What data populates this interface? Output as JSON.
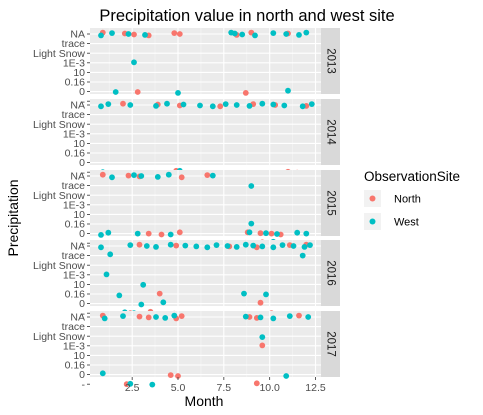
{
  "chart_data": {
    "type": "scatter",
    "title": "Precipitation value in north and west site",
    "xlabel": "Month",
    "ylabel": "Precipitation",
    "xlim": [
      0.2,
      12.8
    ],
    "x_ticks": [
      2.5,
      5.0,
      7.5,
      10.0,
      12.5
    ],
    "x_tick_labels": [
      "2.5",
      "5.0",
      "7.5",
      "10.0",
      "12.5"
    ],
    "y_categories": [
      "NA",
      "trace",
      "Light Snow",
      "1E-3",
      "10",
      "0.16",
      "0",
      "-"
    ],
    "grid": true,
    "legend": {
      "title": "ObservationSite",
      "placement": "right",
      "entries": [
        {
          "name": "North",
          "color": "#F8766D"
        },
        {
          "name": "West",
          "color": "#00BFC4"
        }
      ]
    },
    "facets": [
      {
        "label": "2013",
        "series": [
          {
            "name": "North",
            "points": [
              [
                0.9,
                "NA"
              ],
              [
                2.1,
                "NA"
              ],
              [
                2.6,
                "NA"
              ],
              [
                3.4,
                "NA"
              ],
              [
                4.8,
                "NA"
              ],
              [
                5.1,
                "NA"
              ],
              [
                8.2,
                "NA"
              ],
              [
                9.0,
                "NA"
              ],
              [
                11.0,
                "NA"
              ],
              [
                2.8,
                "0"
              ],
              [
                8.7,
                "0"
              ]
            ]
          },
          {
            "name": "West",
            "points": [
              [
                0.8,
                "NA"
              ],
              [
                1.4,
                "NA"
              ],
              [
                2.3,
                "NA"
              ],
              [
                3.2,
                "NA"
              ],
              [
                7.9,
                "NA"
              ],
              [
                8.1,
                "NA"
              ],
              [
                8.5,
                "NA"
              ],
              [
                9.2,
                "NA"
              ],
              [
                10.2,
                "NA"
              ],
              [
                10.9,
                "NA"
              ],
              [
                11.6,
                "NA"
              ],
              [
                12.0,
                "NA"
              ],
              [
                2.6,
                "1E-3"
              ],
              [
                1.6,
                "0"
              ],
              [
                5.0,
                "0"
              ],
              [
                11.0,
                "0"
              ]
            ]
          }
        ]
      },
      {
        "label": "2014",
        "series": [
          {
            "name": "North",
            "points": [
              [
                2.0,
                "NA"
              ],
              [
                3.9,
                "NA"
              ],
              [
                5.1,
                "NA"
              ],
              [
                7.3,
                "NA"
              ],
              [
                9.1,
                "NA"
              ],
              [
                10.3,
                "NA"
              ],
              [
                12.0,
                "NA"
              ],
              [
                4.9,
                "-"
              ],
              [
                11.0,
                "-"
              ],
              [
                11.5,
                "-"
              ]
            ]
          },
          {
            "name": "West",
            "points": [
              [
                0.8,
                "NA"
              ],
              [
                1.2,
                "NA"
              ],
              [
                2.4,
                "NA"
              ],
              [
                3.8,
                "NA"
              ],
              [
                4.4,
                "NA"
              ],
              [
                5.3,
                "NA"
              ],
              [
                6.2,
                "NA"
              ],
              [
                6.9,
                "NA"
              ],
              [
                7.6,
                "NA"
              ],
              [
                8.2,
                "NA"
              ],
              [
                8.9,
                "NA"
              ],
              [
                9.6,
                "NA"
              ],
              [
                10.2,
                "NA"
              ],
              [
                10.8,
                "NA"
              ],
              [
                11.8,
                "NA"
              ],
              [
                12.3,
                "NA"
              ],
              [
                0.9,
                "-"
              ],
              [
                3.9,
                "-"
              ],
              [
                5.1,
                "-"
              ]
            ]
          }
        ]
      },
      {
        "label": "2015",
        "series": [
          {
            "name": "North",
            "points": [
              [
                0.9,
                "NA"
              ],
              [
                2.3,
                "NA"
              ],
              [
                2.9,
                "NA"
              ],
              [
                5.2,
                "NA"
              ],
              [
                6.6,
                "NA"
              ],
              [
                3.4,
                "0"
              ],
              [
                4.1,
                "0"
              ],
              [
                5.1,
                "0"
              ],
              [
                8.7,
                "-"
              ],
              [
                9.0,
                "-"
              ],
              [
                9.3,
                "-"
              ],
              [
                9.6,
                "-"
              ],
              [
                10.1,
                "0"
              ],
              [
                10.6,
                "0"
              ],
              [
                8.8,
                "0"
              ],
              [
                9.5,
                "0"
              ]
            ]
          },
          {
            "name": "West",
            "points": [
              [
                1.4,
                "NA"
              ],
              [
                2.6,
                "NA"
              ],
              [
                3.0,
                "NA"
              ],
              [
                3.9,
                "NA"
              ],
              [
                4.5,
                "NA"
              ],
              [
                6.9,
                "NA"
              ],
              [
                9.0,
                "trace"
              ],
              [
                0.8,
                "0"
              ],
              [
                1.2,
                "0"
              ],
              [
                2.8,
                "0"
              ],
              [
                4.6,
                "0"
              ],
              [
                8.9,
                "0"
              ],
              [
                9.8,
                "0"
              ],
              [
                10.4,
                "0"
              ],
              [
                10.9,
                "-"
              ],
              [
                11.5,
                "0"
              ],
              [
                12.0,
                "0"
              ],
              [
                9.2,
                "-"
              ],
              [
                10.2,
                "-"
              ],
              [
                9.0,
                "0.16"
              ]
            ]
          }
        ]
      },
      {
        "label": "2016",
        "series": [
          {
            "name": "North",
            "points": [
              [
                2.9,
                "NA"
              ],
              [
                4.9,
                "NA"
              ],
              [
                7.8,
                "NA"
              ],
              [
                9.3,
                "NA"
              ],
              [
                11.1,
                "NA"
              ],
              [
                2.4,
                "-"
              ],
              [
                2.9,
                "-"
              ],
              [
                3.5,
                "-"
              ],
              [
                4.0,
                "0.16"
              ],
              [
                4.8,
                "-"
              ],
              [
                5.0,
                "-"
              ],
              [
                9.5,
                "0"
              ],
              [
                10.1,
                "-"
              ],
              [
                1.5,
                "-"
              ],
              [
                12.0,
                "NA"
              ]
            ]
          },
          {
            "name": "West",
            "points": [
              [
                0.8,
                "NA"
              ],
              [
                2.4,
                "NA"
              ],
              [
                3.3,
                "NA"
              ],
              [
                3.8,
                "NA"
              ],
              [
                4.6,
                "NA"
              ],
              [
                5.4,
                "NA"
              ],
              [
                6.0,
                "NA"
              ],
              [
                6.6,
                "NA"
              ],
              [
                7.1,
                "NA"
              ],
              [
                7.7,
                "NA"
              ],
              [
                8.2,
                "NA"
              ],
              [
                8.7,
                "NA"
              ],
              [
                9.1,
                "NA"
              ],
              [
                9.6,
                "NA"
              ],
              [
                10.2,
                "NA"
              ],
              [
                10.7,
                "NA"
              ],
              [
                11.3,
                "NA"
              ],
              [
                11.9,
                "NA"
              ],
              [
                1.3,
                "trace"
              ],
              [
                1.1,
                "1E-3"
              ],
              [
                3.1,
                "10"
              ],
              [
                1.8,
                "0.16"
              ],
              [
                2.1,
                "-"
              ],
              [
                2.6,
                "-"
              ],
              [
                3.0,
                "0"
              ],
              [
                4.2,
                "0"
              ],
              [
                8.6,
                "0.16"
              ],
              [
                9.8,
                "0.16"
              ],
              [
                9.2,
                "-"
              ],
              [
                12.2,
                "NA"
              ],
              [
                11.8,
                "trace"
              ]
            ]
          }
        ]
      },
      {
        "label": "2017",
        "series": [
          {
            "name": "North",
            "points": [
              [
                0.9,
                "NA"
              ],
              [
                2.9,
                "NA"
              ],
              [
                3.4,
                "NA"
              ],
              [
                4.9,
                "NA"
              ],
              [
                5.2,
                "NA"
              ],
              [
                8.9,
                "NA"
              ],
              [
                9.3,
                "NA"
              ],
              [
                11.6,
                "NA"
              ],
              [
                9.6,
                "1E-3"
              ],
              [
                4.6,
                "0"
              ],
              [
                5.0,
                "0"
              ],
              [
                9.3,
                "-"
              ],
              [
                2.2,
                "-"
              ]
            ]
          },
          {
            "name": "West",
            "points": [
              [
                1.0,
                "NA"
              ],
              [
                2.0,
                "NA"
              ],
              [
                3.8,
                "NA"
              ],
              [
                4.3,
                "NA"
              ],
              [
                4.8,
                "NA"
              ],
              [
                8.7,
                "NA"
              ],
              [
                9.5,
                "NA"
              ],
              [
                10.2,
                "NA"
              ],
              [
                11.1,
                "NA"
              ],
              [
                12.1,
                "NA"
              ],
              [
                9.6,
                "Light Snow"
              ],
              [
                0.9,
                "0"
              ],
              [
                2.4,
                "-"
              ],
              [
                3.6,
                "-"
              ],
              [
                10.9,
                "0"
              ]
            ]
          }
        ]
      }
    ]
  }
}
